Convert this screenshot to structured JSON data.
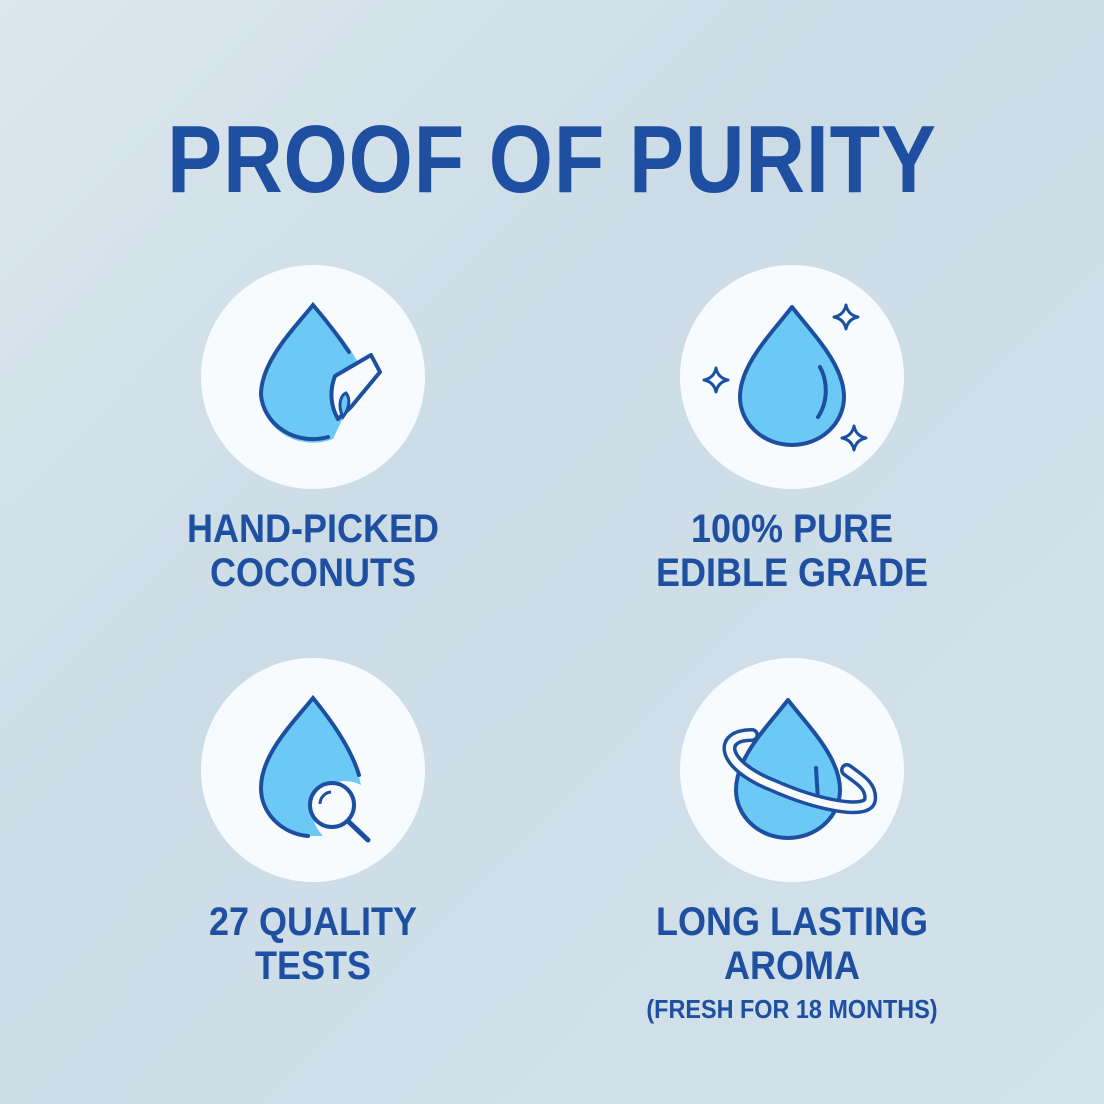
{
  "title": "PROOF OF PURITY",
  "colors": {
    "text": "#1f4fa0",
    "drop_fill": "#6cc8f5",
    "circle": "#f8fbfd"
  },
  "features": [
    {
      "icon": "drop-hand-icon",
      "line1": "HAND-PICKED",
      "line2": "COCONUTS"
    },
    {
      "icon": "drop-sparkle-icon",
      "line1": "100% PURE",
      "line2": "EDIBLE GRADE"
    },
    {
      "icon": "drop-magnifier-icon",
      "line1": "27 QUALITY",
      "line2": "TESTS"
    },
    {
      "icon": "drop-orbit-icon",
      "line1": "LONG LASTING",
      "line2": "AROMA",
      "note": "(FRESH FOR 18 MONTHS)"
    }
  ]
}
